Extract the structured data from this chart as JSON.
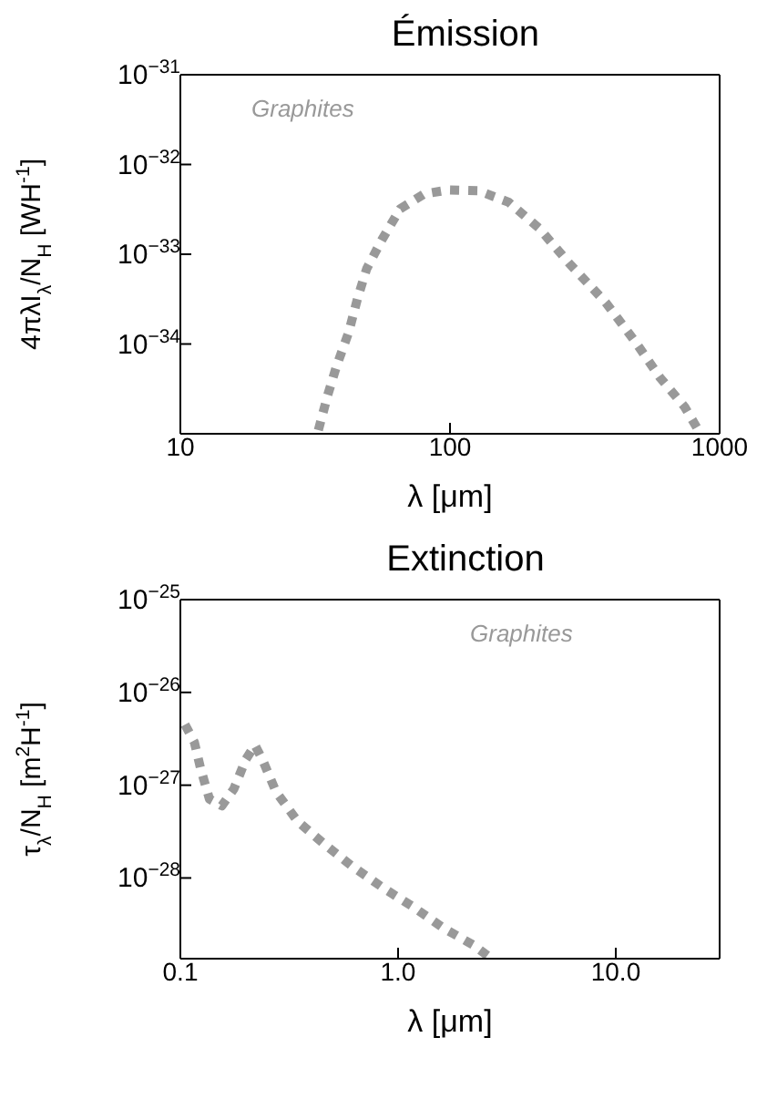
{
  "chart_data": [
    {
      "type": "line",
      "title": "Émission",
      "xlabel": "λ [μm]",
      "ylabel": "4πλI$_{λ}$/N$_{H}$ [WH$^{-1}$]",
      "log": "xy",
      "grid": false,
      "legend": false,
      "marker": "none",
      "line_style": "dotted",
      "xlim": [
        10,
        1000
      ],
      "xticks": [
        10,
        100,
        1000
      ],
      "ylim": [
        1e-35,
        1e-31
      ],
      "yticks": [
        {
          "value": 1e-35,
          "label": null
        },
        {
          "value": 1e-34,
          "label": "10$^{−34}$"
        },
        {
          "value": 1e-33,
          "label": "10$^{−33}$"
        },
        {
          "value": 1e-32,
          "label": "10$^{−32}$"
        },
        {
          "value": 1e-31,
          "label": "10$^{−31}$"
        }
      ],
      "x": [
        32.5,
        35.2,
        37.9,
        42.1,
        45.5,
        49.1,
        55.9,
        65.3,
        80.2,
        98.6,
        127.6,
        165,
        214,
        277,
        378,
        490,
        602,
        741,
        844
      ],
      "series": [
        {
          "name": "Graphites",
          "color": "#999999",
          "values": [
            1.1e-35,
            2.7e-35,
            5.6e-35,
            1.35e-34,
            3.3e-34,
            6.9e-34,
            1.45e-33,
            3.2e-33,
            4.7e-33,
            5.2e-33,
            5.1e-33,
            3.8e-33,
            1.95e-33,
            7.9e-34,
            2.9e-34,
            1.03e-34,
            4.2e-35,
            2e-35,
            1.03e-35
          ]
        }
      ]
    },
    {
      "type": "line",
      "title": "Extinction",
      "xlabel": "λ [μm]",
      "ylabel": "τ$_{λ}$/N$_{H}$ [m$^{2}$H$^{-1}$]",
      "log": "xy",
      "grid": false,
      "legend": false,
      "marker": "none",
      "line_style": "dotted",
      "xlim": [
        0.1,
        30
      ],
      "xticks": [
        0.1,
        {
          "value": 1,
          "label": "1.0"
        },
        {
          "value": 10,
          "label": "10.0"
        }
      ],
      "ylim": [
        1.35e-29,
        1e-25
      ],
      "yticks": [
        {
          "value": 1e-28,
          "label": "10$^{−28}$"
        },
        {
          "value": 1e-27,
          "label": "10$^{−27}$"
        },
        {
          "value": 1e-26,
          "label": "10$^{−26}$"
        },
        {
          "value": 1e-25,
          "label": "10$^{−25}$"
        }
      ],
      "x": [
        0.105,
        0.116,
        0.124,
        0.136,
        0.155,
        0.176,
        0.2,
        0.22,
        0.238,
        0.275,
        0.345,
        0.46,
        0.61,
        0.87,
        1.17,
        1.61,
        2.21,
        2.69
      ],
      "series": [
        {
          "name": "Graphites",
          "color": "#999999",
          "values": [
            4.5e-27,
            2.9e-27,
            1.5e-27,
            7.1e-28,
            6e-28,
            9.1e-28,
            1.9e-27,
            2.7e-27,
            1.9e-27,
            8.5e-28,
            4.1e-28,
            2.3e-28,
            1.36e-28,
            7.6e-29,
            4.9e-29,
            2.9e-29,
            1.9e-29,
            1.35e-29
          ]
        }
      ]
    }
  ]
}
